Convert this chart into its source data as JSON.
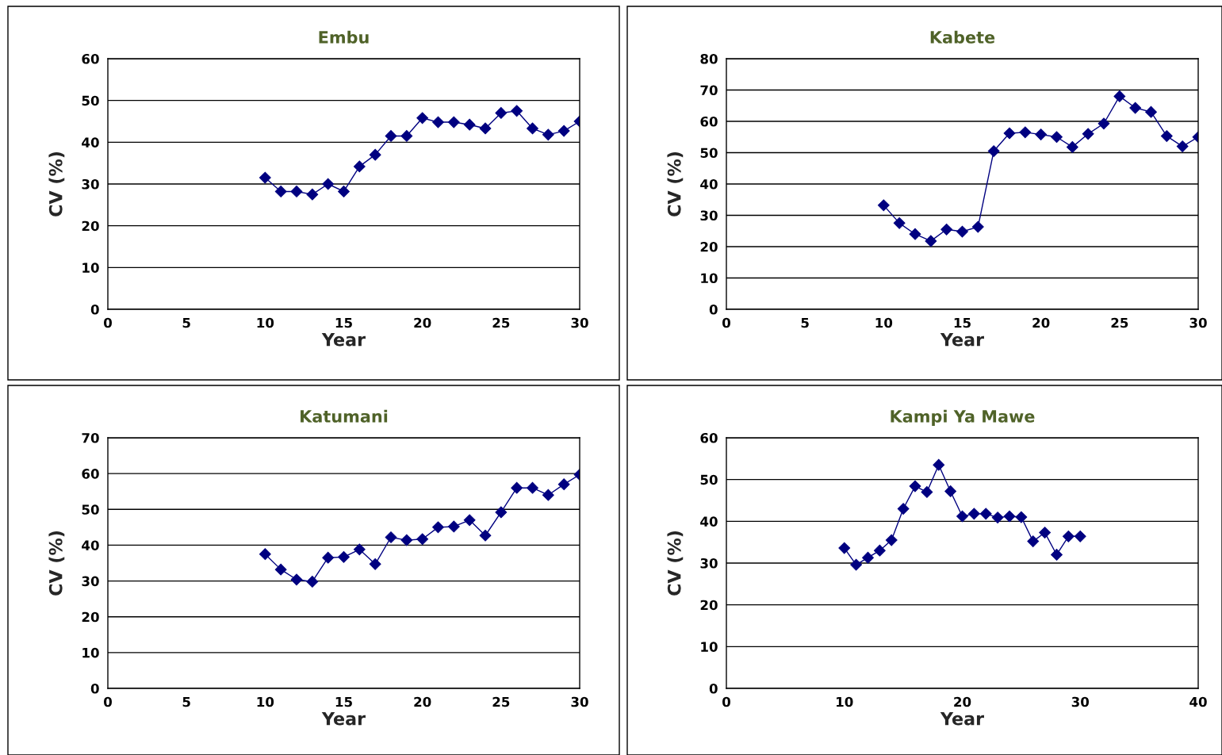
{
  "chart_data": [
    {
      "type": "line",
      "title": "Embu",
      "xlabel": "Year",
      "ylabel": "CV (%)",
      "x": [
        10,
        11,
        12,
        13,
        14,
        15,
        16,
        17,
        18,
        19,
        20,
        21,
        22,
        23,
        24,
        25,
        26,
        27,
        28,
        29,
        30
      ],
      "xlim": [
        0,
        30
      ],
      "xticks": [
        0,
        5,
        10,
        15,
        20,
        25,
        30
      ],
      "ylim": [
        0,
        60
      ],
      "yticks": [
        0,
        10,
        20,
        30,
        40,
        50,
        60
      ],
      "grid": "y",
      "marker": "diamond",
      "series": [
        {
          "color": "#000080",
          "values": [
            31.5,
            28.2,
            28.2,
            27.5,
            30,
            28.2,
            34.2,
            37,
            41.5,
            41.5,
            45.8,
            44.8,
            44.8,
            44.2,
            43.3,
            47,
            47.5,
            43.3,
            41.8,
            42.7,
            45
          ]
        }
      ]
    },
    {
      "type": "line",
      "title": "Kabete",
      "xlabel": "Year",
      "ylabel": "CV (%)",
      "x": [
        10,
        11,
        12,
        13,
        14,
        15,
        16,
        17,
        18,
        19,
        20,
        21,
        22,
        23,
        24,
        25,
        26,
        27,
        28,
        29,
        30
      ],
      "xlim": [
        0,
        30
      ],
      "xticks": [
        0,
        5,
        10,
        15,
        20,
        25,
        30
      ],
      "ylim": [
        0,
        80
      ],
      "yticks": [
        0,
        10,
        20,
        30,
        40,
        50,
        60,
        70,
        80
      ],
      "grid": "y",
      "marker": "diamond",
      "series": [
        {
          "color": "#000080",
          "values": [
            33.2,
            27.5,
            24,
            21.8,
            25.5,
            24.8,
            26.3,
            50.5,
            56.2,
            56.5,
            55.8,
            55,
            51.8,
            56,
            59.3,
            68,
            64.3,
            63,
            55.3,
            52,
            55
          ]
        }
      ]
    },
    {
      "type": "line",
      "title": "Katumani",
      "xlabel": "Year",
      "ylabel": "CV (%)",
      "x": [
        10,
        11,
        12,
        13,
        14,
        15,
        16,
        17,
        18,
        19,
        20,
        21,
        22,
        23,
        24,
        25,
        26,
        27,
        28,
        29,
        30
      ],
      "xlim": [
        0,
        30
      ],
      "xticks": [
        0,
        5,
        10,
        15,
        20,
        25,
        30
      ],
      "ylim": [
        0,
        70
      ],
      "yticks": [
        0,
        10,
        20,
        30,
        40,
        50,
        60,
        70
      ],
      "grid": "y",
      "marker": "diamond",
      "series": [
        {
          "color": "#000080",
          "values": [
            37.5,
            33.2,
            30.4,
            29.8,
            36.5,
            36.7,
            38.8,
            34.7,
            42.2,
            41.4,
            41.7,
            45,
            45.2,
            47,
            42.7,
            49.2,
            56,
            56,
            54,
            57,
            59.7
          ]
        }
      ]
    },
    {
      "type": "line",
      "title": "Kampi Ya Mawe",
      "xlabel": "Year",
      "ylabel": "CV (%)",
      "x": [
        10,
        11,
        12,
        13,
        14,
        15,
        16,
        17,
        18,
        19,
        20,
        21,
        22,
        23,
        24,
        25,
        26,
        27,
        28,
        29,
        30
      ],
      "xlim": [
        0,
        40
      ],
      "xticks": [
        0,
        10,
        20,
        30,
        40
      ],
      "ylim": [
        0,
        60
      ],
      "yticks": [
        0,
        10,
        20,
        30,
        40,
        50,
        60
      ],
      "grid": "y",
      "marker": "diamond",
      "series": [
        {
          "color": "#000080",
          "values": [
            33.6,
            29.6,
            31.3,
            33,
            35.5,
            43,
            48.4,
            47,
            53.5,
            47.2,
            41.2,
            41.8,
            41.8,
            40.9,
            41.2,
            41,
            35.2,
            37.3,
            32,
            36.4,
            36.4
          ]
        }
      ]
    }
  ]
}
